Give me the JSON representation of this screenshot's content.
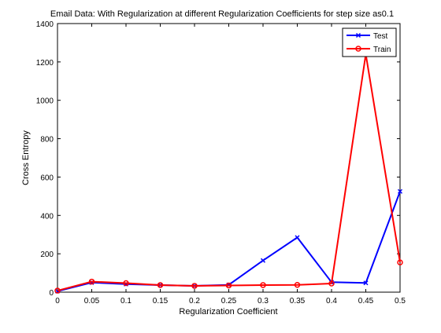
{
  "chart_data": {
    "type": "line",
    "title": "Email Data: With Regularization at different Regularization Coefficients for step size as0.1",
    "xlabel": "Regularization Coefficient",
    "ylabel": "Cross Entropy",
    "xlim": [
      0,
      0.5
    ],
    "ylim": [
      0,
      1400
    ],
    "x_ticks": [
      "0",
      "0.05",
      "0.1",
      "0.15",
      "0.2",
      "0.25",
      "0.3",
      "0.35",
      "0.4",
      "0.45",
      "0.5"
    ],
    "y_ticks": [
      "0",
      "200",
      "400",
      "600",
      "800",
      "1000",
      "1200",
      "1400"
    ],
    "grid": false,
    "legend_position": "top-right",
    "x": [
      0,
      0.05,
      0.1,
      0.15,
      0.2,
      0.25,
      0.3,
      0.35,
      0.4,
      0.45,
      0.5
    ],
    "series": [
      {
        "name": "Test",
        "color": "#0000ff",
        "marker": "x",
        "values": [
          5,
          50,
          42,
          37,
          33,
          38,
          165,
          285,
          52,
          48,
          525
        ]
      },
      {
        "name": "Train",
        "color": "#ff0000",
        "marker": "circle",
        "values": [
          8,
          55,
          47,
          37,
          33,
          35,
          37,
          38,
          45,
          1240,
          155
        ]
      }
    ]
  }
}
